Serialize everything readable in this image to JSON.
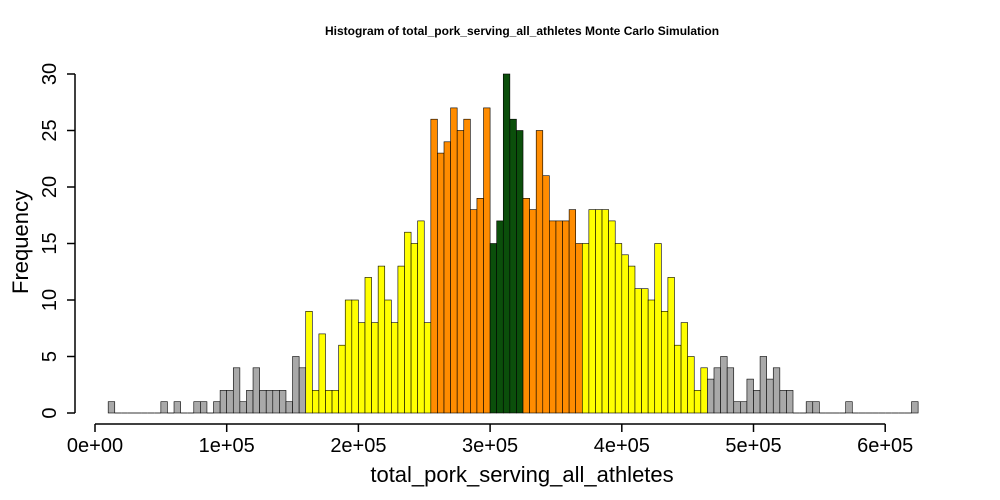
{
  "chart_data": {
    "type": "bar",
    "title": "Histogram of  total_pork_serving_all_athletes  Monte Carlo Simulation",
    "xlabel": "total_pork_serving_all_athletes",
    "ylabel": "Frequency",
    "xlim": [
      0,
      640000
    ],
    "ylim": [
      0,
      30
    ],
    "grid": false,
    "bin_width": 5000,
    "bin_start": 10000,
    "x_ticks": [
      0,
      100000,
      200000,
      300000,
      400000,
      500000,
      600000
    ],
    "x_tick_labels": [
      "0e+00",
      "1e+05",
      "2e+05",
      "3e+05",
      "4e+05",
      "5e+05",
      "6e+05"
    ],
    "y_ticks": [
      0,
      5,
      10,
      15,
      20,
      25,
      30
    ],
    "y_tick_labels": [
      "0",
      "5",
      "10",
      "15",
      "20",
      "25",
      "30"
    ],
    "colors": {
      "tail": "#A9A9A9",
      "outer": "#FFFF00",
      "inner": "#FF8C00",
      "center": "#0B4F0B",
      "edge": "#000000"
    },
    "series": [
      {
        "values": [
          1,
          0,
          0,
          0,
          0,
          0,
          0,
          0,
          1,
          0,
          1,
          0,
          0,
          1,
          1,
          0,
          1,
          2,
          2,
          4,
          1,
          2,
          4,
          2,
          2,
          2,
          2,
          1,
          5,
          4,
          9,
          2,
          7,
          2,
          2,
          6,
          10,
          10,
          8,
          12,
          8,
          13,
          10,
          8,
          13,
          16,
          15,
          17,
          8,
          26,
          23,
          24,
          27,
          25,
          26,
          18,
          19,
          27,
          15,
          17,
          30,
          26,
          25,
          19,
          18,
          25,
          21,
          17,
          17,
          17,
          18,
          15,
          15,
          18,
          18,
          18,
          17,
          15,
          14,
          13,
          11,
          11,
          10,
          15,
          9,
          12,
          6,
          8,
          5,
          2,
          4,
          3,
          4,
          5,
          4,
          1,
          1,
          3,
          2,
          5,
          3,
          4,
          2,
          2,
          0,
          0,
          1,
          1,
          0,
          0,
          0,
          0,
          1,
          0,
          0,
          0,
          0,
          0,
          0,
          0,
          0,
          0,
          1
        ],
        "colors": [
          "tail",
          "tail",
          "tail",
          "tail",
          "tail",
          "tail",
          "tail",
          "tail",
          "tail",
          "tail",
          "tail",
          "tail",
          "tail",
          "tail",
          "tail",
          "tail",
          "tail",
          "tail",
          "tail",
          "tail",
          "tail",
          "tail",
          "tail",
          "tail",
          "tail",
          "tail",
          "tail",
          "tail",
          "tail",
          "tail",
          "outer",
          "outer",
          "outer",
          "outer",
          "outer",
          "outer",
          "outer",
          "outer",
          "outer",
          "outer",
          "outer",
          "outer",
          "outer",
          "outer",
          "outer",
          "outer",
          "outer",
          "outer",
          "outer",
          "inner",
          "inner",
          "inner",
          "inner",
          "inner",
          "inner",
          "inner",
          "inner",
          "inner",
          "center",
          "center",
          "center",
          "center",
          "center",
          "inner",
          "inner",
          "inner",
          "inner",
          "inner",
          "inner",
          "inner",
          "inner",
          "inner",
          "outer",
          "outer",
          "outer",
          "outer",
          "outer",
          "outer",
          "outer",
          "outer",
          "outer",
          "outer",
          "outer",
          "outer",
          "outer",
          "outer",
          "outer",
          "outer",
          "outer",
          "outer",
          "outer",
          "tail",
          "tail",
          "tail",
          "tail",
          "tail",
          "tail",
          "tail",
          "tail",
          "tail",
          "tail",
          "tail",
          "tail",
          "tail",
          "tail",
          "tail",
          "tail",
          "tail",
          "tail",
          "tail",
          "tail",
          "tail",
          "tail",
          "tail",
          "tail",
          "tail",
          "tail",
          "tail",
          "tail",
          "tail",
          "tail",
          "tail",
          "tail",
          "tail"
        ]
      }
    ]
  }
}
